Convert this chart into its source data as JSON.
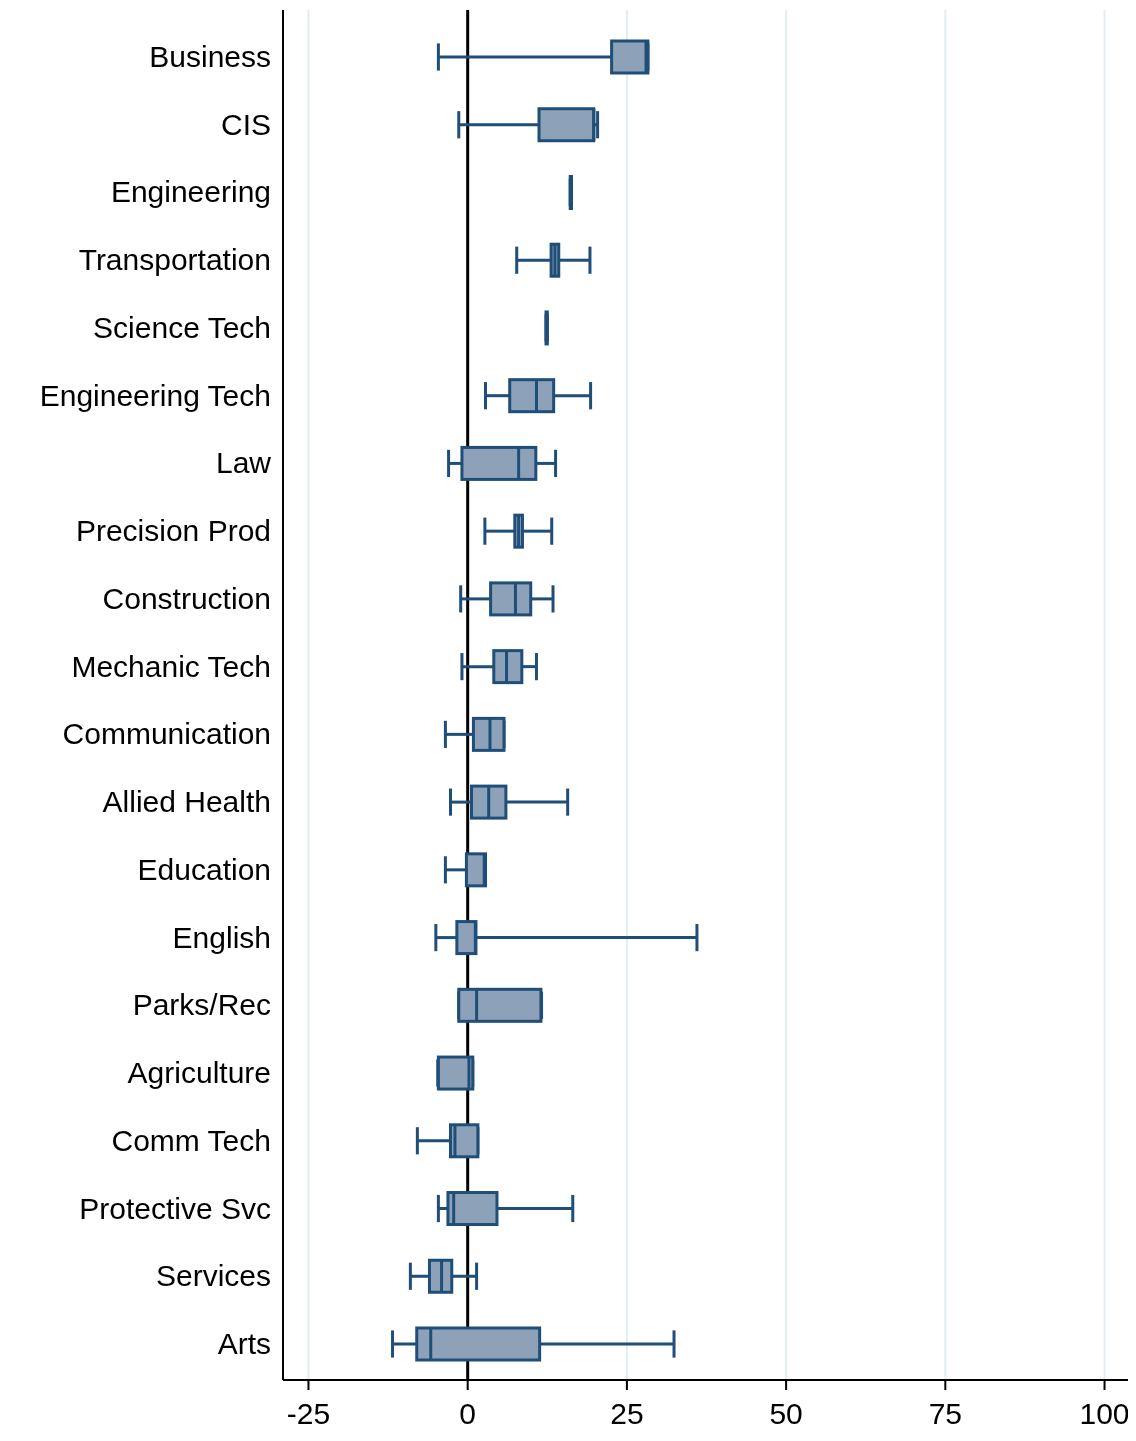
{
  "chart_data": {
    "type": "box",
    "orientation": "horizontal",
    "categories": [
      "Business",
      "CIS",
      "Engineering",
      "Transportation",
      "Science Tech",
      "Engineering Tech",
      "Law",
      "Precision Prod",
      "Construction",
      "Mechanic Tech",
      "Communication",
      "Allied Health",
      "Education",
      "English",
      "Parks/Rec",
      "Agriculture",
      "Comm Tech",
      "Protective Svc",
      "Services",
      "Arts"
    ],
    "boxes": [
      {
        "low": -4.6,
        "q1": 22.6,
        "median": 28,
        "q3": 28.3,
        "high": 28.3
      },
      {
        "low": -1.4,
        "q1": 11.2,
        "median": 19.8,
        "q3": 19.8,
        "high": 20.4
      },
      {
        "low": 16.1,
        "q1": 16.1,
        "median": 16.2,
        "q3": 16.3,
        "high": 16.3
      },
      {
        "low": 7.7,
        "q1": 13.1,
        "median": 13.7,
        "q3": 14.3,
        "high": 19.2
      },
      {
        "low": 12.3,
        "q1": 12.3,
        "median": 12.4,
        "q3": 12.5,
        "high": 12.5
      },
      {
        "low": 2.8,
        "q1": 6.6,
        "median": 10.8,
        "q3": 13.5,
        "high": 19.3
      },
      {
        "low": -3,
        "q1": -0.9,
        "median": 8,
        "q3": 10.7,
        "high": 13.8
      },
      {
        "low": 2.7,
        "q1": 7.4,
        "median": 8,
        "q3": 8.6,
        "high": 13.2
      },
      {
        "low": -1.1,
        "q1": 3.6,
        "median": 7.5,
        "q3": 9.9,
        "high": 13.4
      },
      {
        "low": -0.9,
        "q1": 4.1,
        "median": 6.1,
        "q3": 8.5,
        "high": 10.8
      },
      {
        "low": -3.5,
        "q1": 0.9,
        "median": 3.5,
        "q3": 5.7,
        "high": 5.7
      },
      {
        "low": -2.7,
        "q1": 0.6,
        "median": 3.3,
        "q3": 6,
        "high": 15.7
      },
      {
        "low": -3.5,
        "q1": -0.2,
        "median": 2.6,
        "q3": 2.8,
        "high": 2.8
      },
      {
        "low": -5,
        "q1": -1.7,
        "median": 1.2,
        "q3": 1.3,
        "high": 36
      },
      {
        "low": -1.4,
        "q1": -1.4,
        "median": 1.4,
        "q3": 11.5,
        "high": 11.6
      },
      {
        "low": -4.7,
        "q1": -4.6,
        "median": 0.2,
        "q3": 0.8,
        "high": 0.8
      },
      {
        "low": -7.9,
        "q1": -2.7,
        "median": -2,
        "q3": 1.6,
        "high": 1.6
      },
      {
        "low": -4.6,
        "q1": -3.1,
        "median": -2.2,
        "q3": 4.6,
        "high": 16.5
      },
      {
        "low": -9,
        "q1": -6,
        "median": -4.1,
        "q3": -2.5,
        "high": 1.4
      },
      {
        "low": -11.8,
        "q1": -8,
        "median": -5.8,
        "q3": 11.3,
        "high": 32.4
      }
    ],
    "color": "#8da2b8",
    "xlim": [
      -29,
      104
    ],
    "xticks": [
      -25,
      0,
      25,
      50,
      75,
      100
    ],
    "grid": "x",
    "ref_lines": [
      {
        "axis": "x",
        "value": 0,
        "color": "#000000"
      }
    ]
  }
}
